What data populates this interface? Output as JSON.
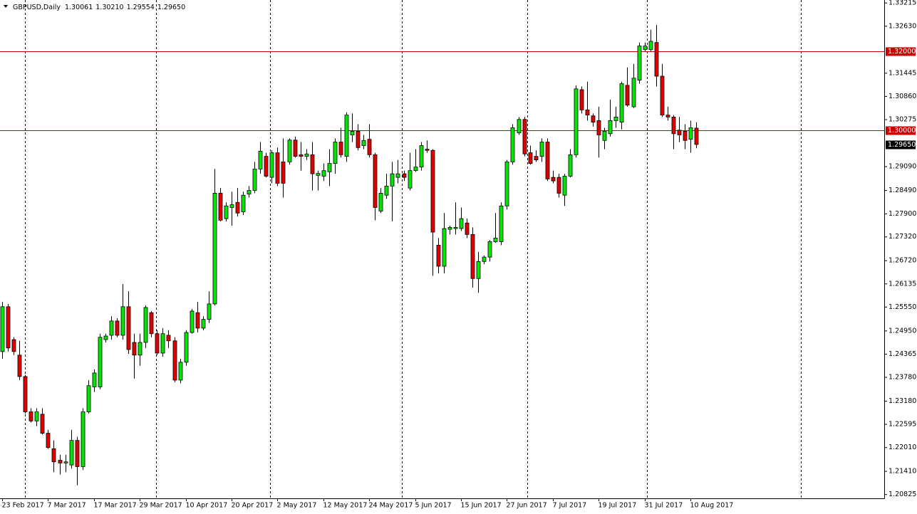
{
  "chart_data": {
    "type": "candlestick",
    "header": {
      "symbol": "GBPUSD,Daily",
      "ohlc": [
        "1.30061",
        "1.30210",
        "1.29554",
        "1.29650"
      ]
    },
    "categories": [
      "23 Feb 2017",
      null,
      null,
      null,
      null,
      null,
      null,
      null,
      "7 Mar 2017",
      null,
      null,
      null,
      null,
      null,
      null,
      null,
      "17 Mar 2017",
      null,
      null,
      null,
      null,
      null,
      null,
      null,
      "29 Mar 2017",
      null,
      null,
      null,
      null,
      null,
      null,
      null,
      "10 Apr 2017",
      null,
      null,
      null,
      null,
      null,
      null,
      null,
      "20 Apr 2017",
      null,
      null,
      null,
      null,
      null,
      null,
      null,
      "2 May 2017",
      null,
      null,
      null,
      null,
      null,
      null,
      null,
      "12 May 2017",
      null,
      null,
      null,
      null,
      null,
      null,
      null,
      "24 May 2017",
      null,
      null,
      null,
      null,
      null,
      null,
      null,
      "5 Jun 2017",
      null,
      null,
      null,
      null,
      null,
      null,
      null,
      "15 Jun 2017",
      null,
      null,
      null,
      null,
      null,
      null,
      null,
      "27 Jun 2017",
      null,
      null,
      null,
      null,
      null,
      null,
      null,
      "7 Jul 2017",
      null,
      null,
      null,
      null,
      null,
      null,
      null,
      "19 Jul 2017",
      null,
      null,
      null,
      null,
      null,
      null,
      null,
      "31 Jul 2017",
      null,
      null,
      null,
      null,
      null,
      null,
      null,
      "10 Aug 2017",
      null
    ],
    "open": [
      1.2443,
      1.2556,
      1.2473,
      1.2434,
      1.238,
      1.2291,
      1.2268,
      1.2285,
      1.2237,
      1.2198,
      1.2169,
      1.2162,
      1.2157,
      1.2219,
      1.2153,
      1.2291,
      1.2354,
      1.2354,
      1.2473,
      1.2484,
      1.252,
      1.2484,
      1.2556,
      1.2466,
      1.2434,
      1.2466,
      1.2541,
      1.2488,
      1.2439,
      1.2484,
      1.247,
      1.2371,
      1.2416,
      1.2491,
      1.2541,
      1.2502,
      1.2524,
      1.2563,
      1.2842,
      1.2778,
      1.2806,
      1.2819,
      1.2795,
      1.284,
      1.2849,
      1.2903,
      1.2935,
      1.2882,
      1.2944,
      1.2921,
      1.2921,
      1.2976,
      1.2939,
      1.2935,
      1.2939,
      1.2887,
      1.2885,
      1.2896,
      1.2917,
      1.2971,
      1.2935,
      1.2989,
      1.2998,
      1.2962,
      1.2978,
      1.2939,
      1.2797,
      1.2837,
      1.286,
      1.2882,
      1.2891,
      1.2855,
      1.2899,
      1.2908,
      1.2953,
      1.295,
      1.2711,
      1.2658,
      1.2751,
      1.2753,
      1.2753,
      1.2767,
      1.2738,
      1.2627,
      1.267,
      1.2681,
      1.272,
      1.272,
      1.281,
      1.2921,
      1.2994,
      1.3028,
      1.2944,
      1.2935,
      1.2935,
      1.2971,
      1.2882,
      1.2882,
      1.2837,
      1.2885,
      1.2939,
      1.3103,
      1.3052,
      1.3037,
      1.3025,
      1.2975,
      1.2992,
      1.3025,
      1.3021,
      1.3114,
      1.306,
      1.3127,
      1.3204,
      1.3204,
      1.3222,
      1.3137,
      1.3039,
      1.3034,
      1.3001,
      1.2998,
      1.2978,
      1.30061
    ],
    "high": [
      1.2568,
      1.2563,
      1.2479,
      1.247,
      1.2384,
      1.23,
      1.23,
      1.23,
      1.2246,
      1.2219,
      1.2183,
      1.2183,
      1.2246,
      1.2228,
      1.23,
      1.2371,
      1.2398,
      1.2488,
      1.2488,
      1.2532,
      1.2527,
      1.2613,
      1.2595,
      1.2488,
      1.2488,
      1.2559,
      1.2545,
      1.2497,
      1.2502,
      1.2497,
      1.2479,
      1.2425,
      1.2497,
      1.255,
      1.2568,
      1.2532,
      1.2595,
      1.2903,
      1.2855,
      1.2819,
      1.2846,
      1.2855,
      1.2846,
      1.286,
      1.2921,
      1.2971,
      1.2944,
      1.295,
      1.2957,
      1.298,
      1.298,
      1.2985,
      1.2971,
      1.2953,
      1.2971,
      1.2899,
      1.2917,
      1.2953,
      1.298,
      1.3007,
      1.3046,
      1.3043,
      1.3016,
      1.2989,
      1.3016,
      1.2944,
      1.2855,
      1.2891,
      1.2921,
      1.2926,
      1.2899,
      1.2944,
      1.2953,
      1.2971,
      1.2975,
      1.2953,
      1.2729,
      1.2792,
      1.276,
      1.2819,
      1.2806,
      1.2778,
      1.2756,
      1.2694,
      1.2685,
      1.2724,
      1.2792,
      1.2819,
      1.2926,
      1.3016,
      1.3034,
      1.3034,
      1.2962,
      1.295,
      1.298,
      1.298,
      1.2899,
      1.2891,
      1.2891,
      1.2953,
      1.3114,
      1.3111,
      1.3123,
      1.3043,
      1.306,
      1.3007,
      1.3078,
      1.306,
      1.3123,
      1.3159,
      1.3168,
      1.3222,
      1.3222,
      1.3254,
      1.3266,
      1.3168,
      1.306,
      1.3039,
      1.3034,
      1.3016,
      1.3025,
      1.3021
    ],
    "low": [
      1.2425,
      1.2443,
      1.2434,
      1.2371,
      1.2287,
      1.2264,
      1.2255,
      1.2234,
      1.2198,
      1.2139,
      1.2133,
      1.2139,
      1.2148,
      1.2106,
      1.2144,
      1.2287,
      1.2341,
      1.2348,
      1.2466,
      1.2473,
      1.2479,
      1.2473,
      1.2437,
      1.2375,
      1.2407,
      1.2452,
      1.2479,
      1.2434,
      1.243,
      1.2452,
      1.2366,
      1.2363,
      1.2407,
      1.2488,
      1.2491,
      1.2497,
      1.2515,
      1.2559,
      1.2771,
      1.2771,
      1.276,
      1.2783,
      1.2787,
      1.2831,
      1.2842,
      1.2891,
      1.2882,
      1.2867,
      1.286,
      1.2831,
      1.2914,
      1.2932,
      1.2899,
      1.2926,
      1.2849,
      1.2849,
      1.2873,
      1.286,
      1.2891,
      1.2932,
      1.2921,
      1.2971,
      1.295,
      1.2953,
      1.2932,
      1.2774,
      1.2792,
      1.2828,
      1.2771,
      1.2867,
      1.2873,
      1.2849,
      1.2896,
      1.2899,
      1.2944,
      1.2634,
      1.264,
      1.264,
      1.2738,
      1.2738,
      1.2747,
      1.2729,
      1.2604,
      1.2591,
      1.2663,
      1.267,
      1.2717,
      1.2711,
      1.2801,
      1.2914,
      1.2989,
      1.2935,
      1.2914,
      1.2921,
      1.2921,
      1.2873,
      1.2867,
      1.2831,
      1.281,
      1.2882,
      1.2932,
      1.3043,
      1.3025,
      1.301,
      1.2932,
      1.2953,
      1.2985,
      1.3007,
      1.3003,
      1.306,
      1.3057,
      1.3118,
      1.32,
      1.32,
      1.3111,
      1.3034,
      1.3025,
      1.2953,
      1.2971,
      1.2953,
      1.2944,
      1.29554
    ],
    "close": [
      1.2556,
      1.2452,
      1.2443,
      1.238,
      1.2291,
      1.2268,
      1.2291,
      1.2237,
      1.2201,
      1.2165,
      1.2162,
      1.2165,
      1.2219,
      1.2153,
      1.2291,
      1.2357,
      1.2389,
      1.2479,
      1.2482,
      1.252,
      1.2484,
      1.2556,
      1.2448,
      1.2434,
      1.2466,
      1.2554,
      1.2488,
      1.2439,
      1.2488,
      1.247,
      1.2371,
      1.2416,
      1.2491,
      1.2545,
      1.2502,
      1.2524,
      1.2563,
      1.2842,
      1.2774,
      1.281,
      1.2813,
      1.2792,
      1.2837,
      1.2849,
      1.2903,
      1.2948,
      1.2885,
      1.2944,
      1.2867,
      1.2867,
      1.2976,
      1.2935,
      1.2935,
      1.2941,
      1.2891,
      1.2892,
      1.2899,
      1.2917,
      1.2971,
      1.2939,
      1.3039,
      1.2998,
      1.2957,
      1.2975,
      1.2939,
      1.2806,
      1.2842,
      1.286,
      1.2891,
      1.2891,
      1.2882,
      1.2899,
      1.2908,
      1.2962,
      1.295,
      1.2744,
      1.2658,
      1.2753,
      1.2756,
      1.2756,
      1.2778,
      1.2738,
      1.2627,
      1.267,
      1.2681,
      1.272,
      1.2729,
      1.281,
      1.2921,
      1.3007,
      1.3028,
      1.2941,
      1.2917,
      1.2926,
      1.2971,
      1.2878,
      1.2873,
      1.2842,
      1.2885,
      1.2939,
      1.3105,
      1.3052,
      1.3039,
      1.3021,
      1.2989,
      1.2998,
      1.3025,
      1.3034,
      1.3118,
      1.3064,
      1.3132,
      1.3213,
      1.3213,
      1.3225,
      1.3137,
      1.3039,
      1.3034,
      1.2992,
      1.2989,
      1.2975,
      1.3007,
      1.2965
    ],
    "up_color": "#00e600",
    "down_color": "#e00000",
    "ylim": [
      1.2073,
      1.3329
    ],
    "yticks": [
      1.33215,
      {
        "value": 1.3263,
        "label": "1.32630"
      },
      1.31445,
      {
        "value": 1.3086,
        "label": "1.30860"
      },
      1.30275,
      {
        "value": 1.2909,
        "label": "1.29090"
      },
      {
        "value": 1.2849,
        "label": "1.28490"
      },
      {
        "value": 1.279,
        "label": "1.27900"
      },
      {
        "value": 1.2732,
        "label": "1.27320"
      },
      {
        "value": 1.2672,
        "label": "1.26720"
      },
      1.26135,
      {
        "value": 1.2555,
        "label": "1.25550"
      },
      {
        "value": 1.2495,
        "label": "1.24950"
      },
      1.24365,
      {
        "value": 1.2378,
        "label": "1.23780"
      },
      {
        "value": 1.2318,
        "label": "1.23180"
      },
      1.22595,
      {
        "value": 1.2201,
        "label": "1.22010"
      },
      {
        "value": 1.2141,
        "label": "1.21410"
      },
      1.20825
    ],
    "hlines": [
      {
        "value": 1.32,
        "label": "1.32000",
        "color": "#cc0000"
      },
      {
        "value": 1.3,
        "label": "1.30000",
        "color": "#cc0000"
      }
    ],
    "last_price_label": "1.29650"
  }
}
